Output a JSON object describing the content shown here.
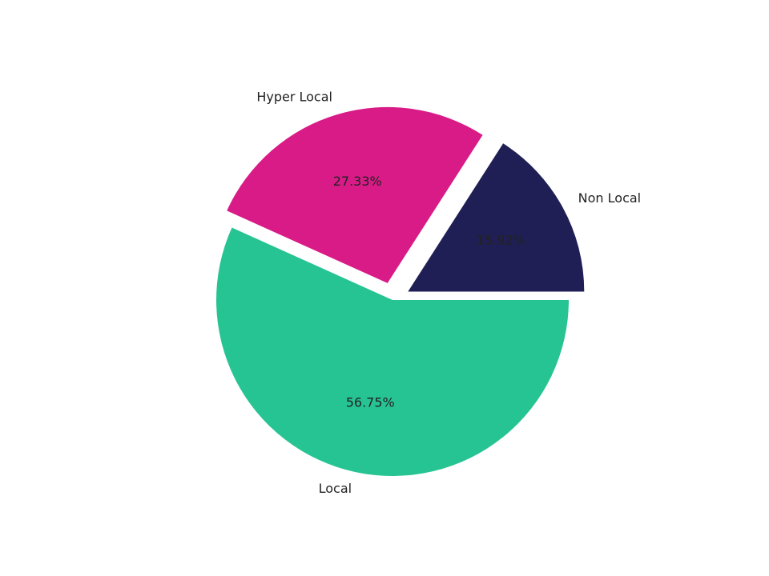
{
  "chart_data": {
    "type": "pie",
    "categories": [
      "Non Local",
      "Hyper Local",
      "Local"
    ],
    "values": [
      15.92,
      27.33,
      56.75
    ],
    "value_labels": [
      "15.92%",
      "27.33%",
      "56.75%"
    ],
    "colors": [
      "#1f1f55",
      "#d81b87",
      "#26c493"
    ],
    "explode": [
      0.1,
      0.1,
      0
    ],
    "start_angle": 0,
    "direction": "counterclockwise"
  }
}
